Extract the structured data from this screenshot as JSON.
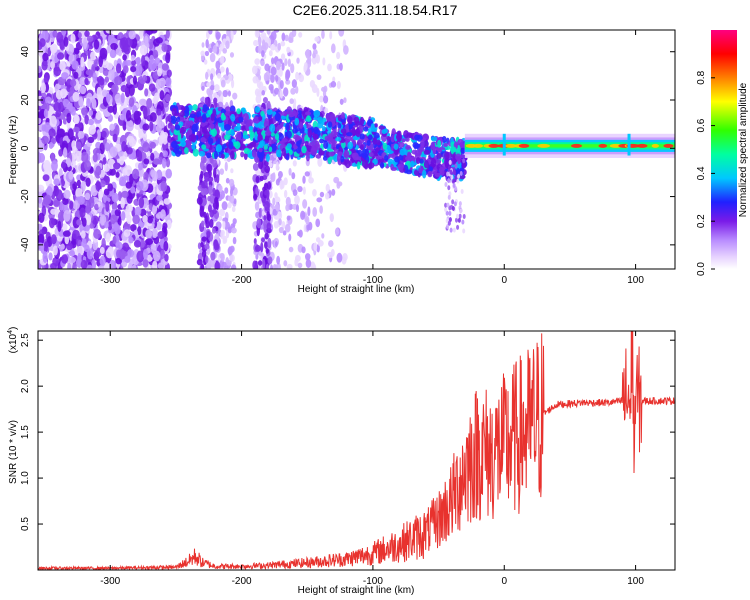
{
  "title": "C2E6.2025.311.18.54.R17",
  "chart_data": [
    {
      "type": "heatmap",
      "title": "C2E6.2025.311.18.54.R17",
      "xlabel": "Height of straight line (km)",
      "ylabel": "Frequency (Hz)",
      "xlim": [
        -355,
        130
      ],
      "ylim": [
        -50,
        49
      ],
      "xticks": [
        -300,
        -200,
        -100,
        0,
        100
      ],
      "yticks": [
        -40,
        -20,
        0,
        20,
        40
      ],
      "colorbar": {
        "label": "Normalized spectral amplitude",
        "range": [
          0,
          1
        ],
        "ticks": [
          "0.0",
          "0.2",
          "0.4",
          "0.6",
          "0.8"
        ],
        "colors": [
          "#ffffff",
          "#c9a6ff",
          "#8a2be2",
          "#2020ff",
          "#00c8ff",
          "#00ff80",
          "#40ff00",
          "#ffff00",
          "#ff8000",
          "#ff0000",
          "#ff0080"
        ]
      },
      "ridge": {
        "x": [
          -255,
          -200,
          -150,
          -100,
          -75,
          -50,
          -35,
          -25,
          -15,
          0,
          50,
          100,
          130
        ],
        "y": [
          8,
          6,
          6,
          2,
          -2,
          -4,
          -5,
          -2,
          1,
          1,
          1,
          1,
          1
        ]
      }
    },
    {
      "type": "line",
      "xlabel": "Height of straight line (km)",
      "ylabel": "SNR (10 * v/v)",
      "yscale_label": "(x10",
      "yscale_exp": "4",
      "xlim": [
        -355,
        130
      ],
      "ylim": [
        0,
        2.6
      ],
      "xticks": [
        -300,
        -200,
        -100,
        0,
        100
      ],
      "yticks": [
        "0.5",
        "1.0",
        "1.5",
        "2.0",
        "2.5"
      ],
      "color": "#e8322e",
      "series": [
        {
          "x": [
            -355,
            -300,
            -250,
            -240,
            -235,
            -230,
            -220,
            -200,
            -180,
            -150,
            -120,
            -100,
            -80,
            -60,
            -50,
            -40,
            -30,
            -20,
            -10,
            0,
            10,
            20,
            30,
            40,
            60,
            80,
            90,
            95,
            98,
            100,
            105,
            110,
            130
          ],
          "y": [
            0.02,
            0.02,
            0.03,
            0.1,
            0.15,
            0.08,
            0.04,
            0.04,
            0.05,
            0.08,
            0.12,
            0.18,
            0.28,
            0.4,
            0.55,
            0.75,
            1.1,
            1.3,
            1.25,
            1.35,
            1.45,
            1.55,
            1.7,
            1.8,
            1.82,
            1.82,
            1.84,
            1.9,
            1.5,
            1.85,
            1.84,
            1.84,
            1.84
          ]
        }
      ]
    }
  ]
}
